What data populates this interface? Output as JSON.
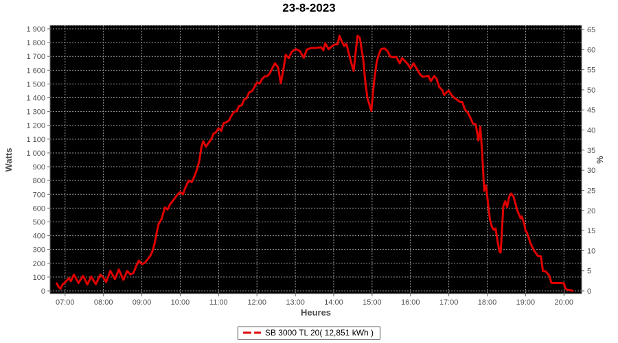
{
  "page": {
    "title": "23-8-2023"
  },
  "colors": {
    "line": "#e00000",
    "plot_bg": "#000000",
    "grid": "#9a9a9a",
    "axis": "#666666",
    "tick_text": "#4d4d4d",
    "axis_title_text": "#4d4d4d",
    "title_text": "#000000",
    "legend_border": "#4d4d4d"
  },
  "chart_data": {
    "type": "line",
    "title": "23-8-2023",
    "xlabel": "Heures",
    "ylabel_left": "Watts",
    "ylabel_right": "%",
    "grid": true,
    "legend_position": "bottom",
    "legend_label": "SB 3000 TL 20( 12,851 kWh )",
    "xlim": [
      6.61,
      20.46
    ],
    "ylim_left": [
      0,
      1900
    ],
    "ylim_right": [
      0,
      65
    ],
    "x_tick_values": [
      7,
      8,
      9,
      10,
      11,
      12,
      13,
      14,
      15,
      16,
      17,
      18,
      19,
      20
    ],
    "x_tick_labels": [
      "07:00",
      "08:00",
      "09:00",
      "10:00",
      "11:00",
      "12:00",
      "13:00",
      "14:00",
      "15:00",
      "16:00",
      "17:00",
      "18:00",
      "19:00",
      "20:00"
    ],
    "y_left_tick_values": [
      0,
      100,
      200,
      300,
      400,
      500,
      600,
      700,
      800,
      900,
      1000,
      1100,
      1200,
      1300,
      1400,
      1500,
      1600,
      1700,
      1800,
      1900
    ],
    "y_left_tick_labels": [
      "0",
      "100",
      "200",
      "300",
      "400",
      "500",
      "600",
      "700",
      "800",
      "900",
      "1 000",
      "1 100",
      "1 200",
      "1 300",
      "1 400",
      "1 500",
      "1 600",
      "1 700",
      "1 800",
      "1 900"
    ],
    "y_right_tick_values": [
      0,
      5,
      10,
      15,
      20,
      25,
      30,
      35,
      40,
      45,
      50,
      55,
      60,
      65
    ],
    "y_right_tick_labels": [
      "0",
      "5",
      "10",
      "15",
      "20",
      "25",
      "30",
      "35",
      "40",
      "45",
      "50",
      "55",
      "60",
      "65"
    ],
    "series": [
      {
        "name": "SB 3000 TL 20( 12,851 kWh )",
        "color": "#e00000",
        "points": [
          [
            6.78,
            55
          ],
          [
            6.83,
            30
          ],
          [
            6.88,
            15
          ],
          [
            6.93,
            45
          ],
          [
            7.0,
            62
          ],
          [
            7.1,
            92
          ],
          [
            7.15,
            70
          ],
          [
            7.23,
            118
          ],
          [
            7.35,
            56
          ],
          [
            7.4,
            80
          ],
          [
            7.47,
            108
          ],
          [
            7.58,
            46
          ],
          [
            7.68,
            104
          ],
          [
            7.8,
            48
          ],
          [
            7.92,
            118
          ],
          [
            8.0,
            95
          ],
          [
            8.07,
            64
          ],
          [
            8.18,
            145
          ],
          [
            8.3,
            85
          ],
          [
            8.4,
            155
          ],
          [
            8.52,
            80
          ],
          [
            8.62,
            144
          ],
          [
            8.7,
            119
          ],
          [
            8.78,
            129
          ],
          [
            8.85,
            179
          ],
          [
            8.92,
            219
          ],
          [
            9.0,
            194
          ],
          [
            9.08,
            204
          ],
          [
            9.15,
            229
          ],
          [
            9.22,
            253
          ],
          [
            9.28,
            290
          ],
          [
            9.33,
            340
          ],
          [
            9.38,
            410
          ],
          [
            9.43,
            480
          ],
          [
            9.52,
            525
          ],
          [
            9.6,
            605
          ],
          [
            9.67,
            590
          ],
          [
            9.73,
            625
          ],
          [
            9.83,
            660
          ],
          [
            9.92,
            695
          ],
          [
            10.0,
            716
          ],
          [
            10.07,
            700
          ],
          [
            10.13,
            745
          ],
          [
            10.22,
            800
          ],
          [
            10.3,
            788
          ],
          [
            10.37,
            830
          ],
          [
            10.43,
            875
          ],
          [
            10.5,
            945
          ],
          [
            10.55,
            1040
          ],
          [
            10.6,
            1085
          ],
          [
            10.67,
            1045
          ],
          [
            10.73,
            1070
          ],
          [
            10.8,
            1095
          ],
          [
            10.87,
            1140
          ],
          [
            10.93,
            1150
          ],
          [
            11.0,
            1180
          ],
          [
            11.07,
            1160
          ],
          [
            11.13,
            1215
          ],
          [
            11.2,
            1222
          ],
          [
            11.27,
            1235
          ],
          [
            11.33,
            1268
          ],
          [
            11.4,
            1298
          ],
          [
            11.47,
            1302
          ],
          [
            11.53,
            1340
          ],
          [
            11.6,
            1345
          ],
          [
            11.67,
            1390
          ],
          [
            11.73,
            1396
          ],
          [
            11.8,
            1440
          ],
          [
            11.87,
            1448
          ],
          [
            11.93,
            1475
          ],
          [
            12.0,
            1510
          ],
          [
            12.07,
            1502
          ],
          [
            12.13,
            1535
          ],
          [
            12.2,
            1555
          ],
          [
            12.27,
            1558
          ],
          [
            12.33,
            1575
          ],
          [
            12.4,
            1615
          ],
          [
            12.47,
            1650
          ],
          [
            12.55,
            1620
          ],
          [
            12.62,
            1505
          ],
          [
            12.68,
            1590
          ],
          [
            12.75,
            1712
          ],
          [
            12.83,
            1688
          ],
          [
            12.9,
            1730
          ],
          [
            12.97,
            1748
          ],
          [
            13.03,
            1752
          ],
          [
            13.12,
            1738
          ],
          [
            13.22,
            1690
          ],
          [
            13.3,
            1750
          ],
          [
            13.4,
            1760
          ],
          [
            13.53,
            1762
          ],
          [
            13.67,
            1766
          ],
          [
            13.73,
            1745
          ],
          [
            13.78,
            1795
          ],
          [
            13.87,
            1752
          ],
          [
            13.97,
            1778
          ],
          [
            14.03,
            1786
          ],
          [
            14.1,
            1788
          ],
          [
            14.15,
            1850
          ],
          [
            14.2,
            1815
          ],
          [
            14.27,
            1775
          ],
          [
            14.33,
            1792
          ],
          [
            14.45,
            1660
          ],
          [
            14.52,
            1595
          ],
          [
            14.62,
            1850
          ],
          [
            14.68,
            1835
          ],
          [
            14.77,
            1675
          ],
          [
            14.82,
            1525
          ],
          [
            14.88,
            1395
          ],
          [
            14.98,
            1305
          ],
          [
            15.05,
            1515
          ],
          [
            15.12,
            1660
          ],
          [
            15.17,
            1710
          ],
          [
            15.23,
            1752
          ],
          [
            15.32,
            1758
          ],
          [
            15.4,
            1740
          ],
          [
            15.47,
            1700
          ],
          [
            15.55,
            1693
          ],
          [
            15.63,
            1697
          ],
          [
            15.72,
            1650
          ],
          [
            15.78,
            1688
          ],
          [
            15.87,
            1662
          ],
          [
            15.93,
            1645
          ],
          [
            16.0,
            1612
          ],
          [
            16.08,
            1650
          ],
          [
            16.17,
            1607
          ],
          [
            16.25,
            1570
          ],
          [
            16.32,
            1552
          ],
          [
            16.4,
            1556
          ],
          [
            16.47,
            1560
          ],
          [
            16.53,
            1520
          ],
          [
            16.62,
            1558
          ],
          [
            16.68,
            1538
          ],
          [
            16.75,
            1478
          ],
          [
            16.83,
            1455
          ],
          [
            16.88,
            1420
          ],
          [
            16.95,
            1442
          ],
          [
            17.0,
            1452
          ],
          [
            17.07,
            1420
          ],
          [
            17.15,
            1398
          ],
          [
            17.22,
            1385
          ],
          [
            17.28,
            1372
          ],
          [
            17.35,
            1370
          ],
          [
            17.42,
            1315
          ],
          [
            17.5,
            1290
          ],
          [
            17.57,
            1250
          ],
          [
            17.63,
            1212
          ],
          [
            17.7,
            1208
          ],
          [
            17.77,
            1090
          ],
          [
            17.82,
            1190
          ],
          [
            17.87,
            990
          ],
          [
            17.92,
            725
          ],
          [
            17.97,
            765
          ],
          [
            18.02,
            640
          ],
          [
            18.07,
            520
          ],
          [
            18.12,
            467
          ],
          [
            18.17,
            442
          ],
          [
            18.22,
            452
          ],
          [
            18.27,
            360
          ],
          [
            18.32,
            285
          ],
          [
            18.35,
            278
          ],
          [
            18.42,
            615
          ],
          [
            18.47,
            650
          ],
          [
            18.52,
            607
          ],
          [
            18.57,
            680
          ],
          [
            18.62,
            706
          ],
          [
            18.68,
            688
          ],
          [
            18.73,
            640
          ],
          [
            18.78,
            585
          ],
          [
            18.87,
            527
          ],
          [
            18.9,
            540
          ],
          [
            18.97,
            480
          ],
          [
            19.0,
            432
          ],
          [
            19.03,
            427
          ],
          [
            19.13,
            343
          ],
          [
            19.22,
            293
          ],
          [
            19.32,
            253
          ],
          [
            19.4,
            250
          ],
          [
            19.45,
            144
          ],
          [
            19.53,
            140
          ],
          [
            19.62,
            109
          ],
          [
            19.67,
            58
          ],
          [
            19.75,
            57
          ],
          [
            19.87,
            57
          ],
          [
            20.0,
            55
          ],
          [
            20.03,
            22
          ],
          [
            20.08,
            8
          ],
          [
            20.17,
            6
          ],
          [
            20.23,
            0
          ]
        ]
      }
    ]
  }
}
